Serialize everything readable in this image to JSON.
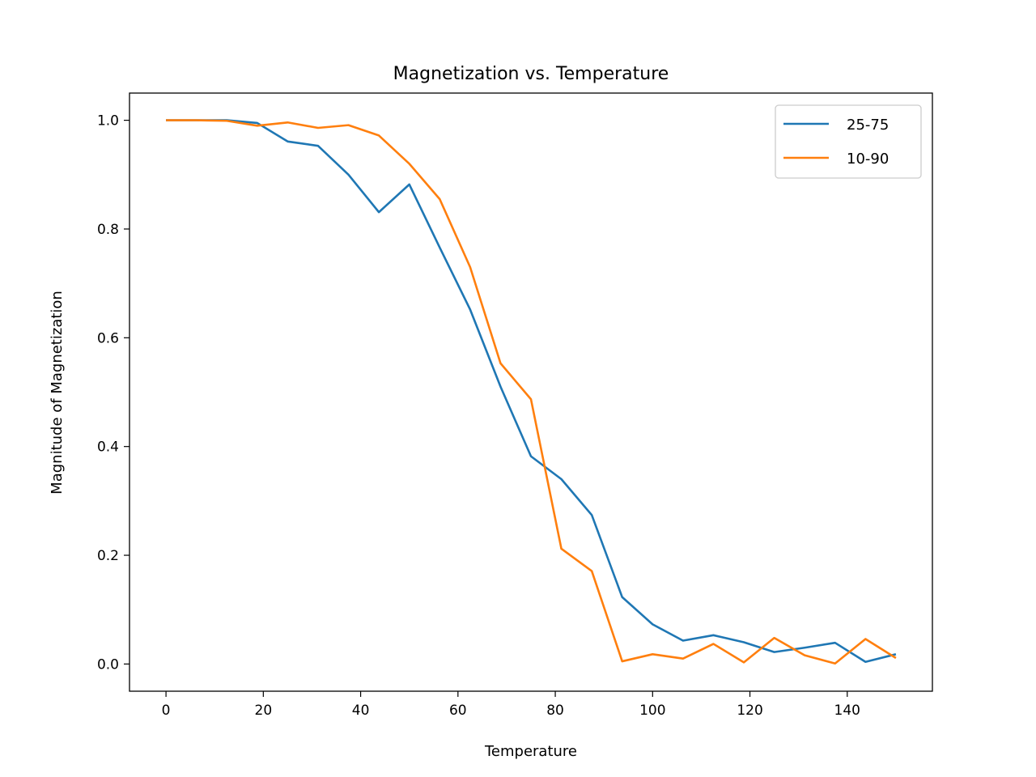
{
  "chart_data": {
    "type": "line",
    "title": "Magnetization vs. Temperature",
    "xlabel": "Temperature",
    "ylabel": "Magnitude of Magnetization",
    "xlim": [
      -7.5,
      157.5
    ],
    "ylim": [
      -0.05,
      1.05
    ],
    "xticks": [
      0,
      20,
      40,
      60,
      80,
      100,
      120,
      140
    ],
    "yticks": [
      0.0,
      0.2,
      0.4,
      0.6,
      0.8,
      1.0
    ],
    "ytick_labels": [
      "0.0",
      "0.2",
      "0.4",
      "0.6",
      "0.8",
      "1.0"
    ],
    "grid": false,
    "legend_position": "upper right",
    "x": [
      0,
      6.25,
      12.5,
      18.75,
      25,
      31.25,
      37.5,
      43.75,
      50,
      56.25,
      62.5,
      68.75,
      75,
      81.25,
      87.5,
      93.75,
      100,
      106.25,
      112.5,
      118.75,
      125,
      131.25,
      137.5,
      143.75,
      150
    ],
    "series": [
      {
        "name": "25-75",
        "color": "#1f77b4",
        "values": [
          1.0,
          1.0,
          1.0,
          0.995,
          0.961,
          0.953,
          0.9,
          0.831,
          0.882,
          0.766,
          0.652,
          0.51,
          0.382,
          0.34,
          0.274,
          0.123,
          0.073,
          0.043,
          0.053,
          0.04,
          0.022,
          0.03,
          0.039,
          0.004,
          0.018
        ]
      },
      {
        "name": "10-90",
        "color": "#ff7f0e",
        "values": [
          1.0,
          1.0,
          0.999,
          0.99,
          0.996,
          0.986,
          0.991,
          0.972,
          0.92,
          0.855,
          0.73,
          0.553,
          0.487,
          0.212,
          0.171,
          0.005,
          0.018,
          0.01,
          0.037,
          0.003,
          0.048,
          0.016,
          0.001,
          0.046,
          0.011
        ]
      }
    ]
  }
}
